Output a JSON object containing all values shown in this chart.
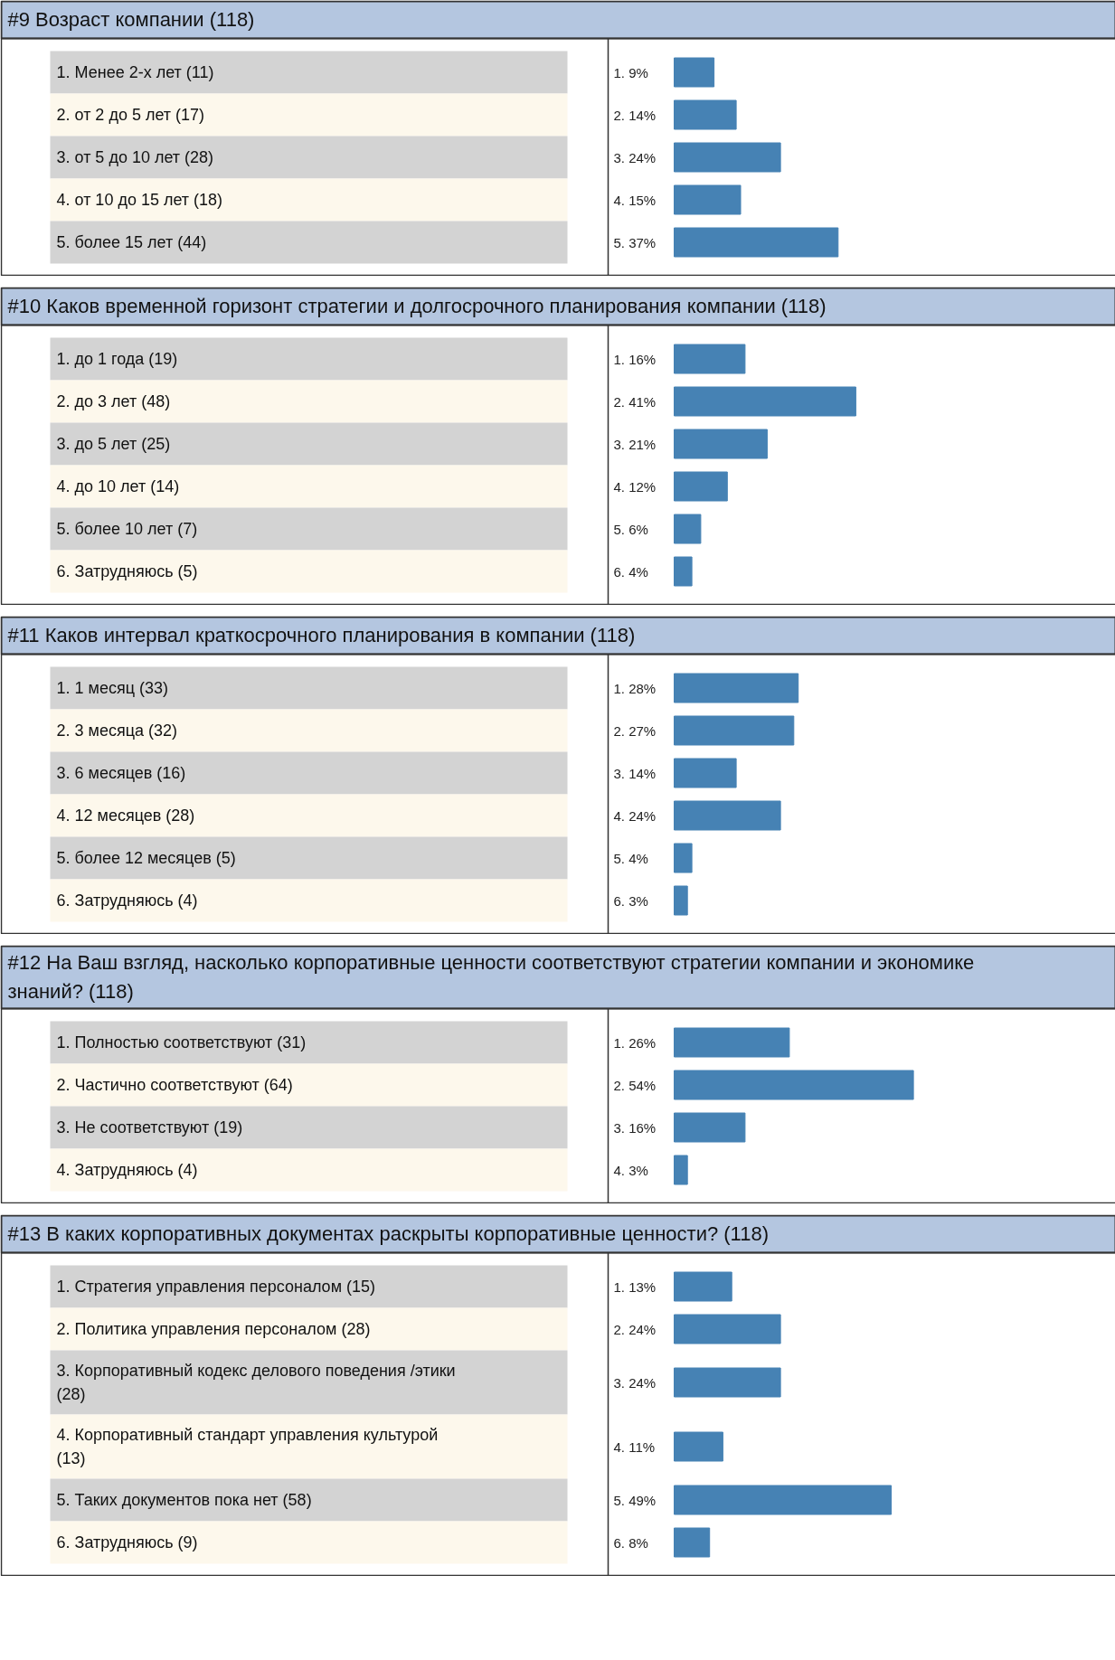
{
  "chart_data": [
    {
      "type": "bar",
      "orientation": "horizontal",
      "color": "#4682b4",
      "title": "#9 Возраст компании (118)",
      "categories": [
        "1. Менее 2-х лет (11)",
        "2. от 2 до 5 лет (17)",
        "3. от 5 до 10 лет (28)",
        "4. от 10 до 15 лет (18)",
        "5. более 15 лет (44)"
      ],
      "values": [
        9,
        14,
        24,
        15,
        37
      ],
      "value_labels": [
        "1. 9%",
        "2. 14%",
        "3. 24%",
        "4. 15%",
        "5. 37%"
      ]
    },
    {
      "type": "bar",
      "orientation": "horizontal",
      "color": "#4682b4",
      "title": "#10 Каков временной горизонт стратегии и  долгосрочного планирования компании (118)",
      "categories": [
        "1. до 1 года (19)",
        "2. до 3 лет (48)",
        "3. до 5 лет (25)",
        "4. до 10 лет (14)",
        "5. более 10 лет (7)",
        "6. Затрудняюсь (5)"
      ],
      "values": [
        16,
        41,
        21,
        12,
        6,
        4
      ],
      "value_labels": [
        "1. 16%",
        "2. 41%",
        "3. 21%",
        "4. 12%",
        "5. 6%",
        "6. 4%"
      ]
    },
    {
      "type": "bar",
      "orientation": "horizontal",
      "color": "#4682b4",
      "title": "#11 Каков интервал краткосрочного планирования в компании (118)",
      "categories": [
        "1. 1 месяц (33)",
        "2. 3 месяца (32)",
        "3. 6 месяцев (16)",
        "4. 12 месяцев (28)",
        "5. более 12 месяцев (5)",
        "6. Затрудняюсь (4)"
      ],
      "values": [
        28,
        27,
        14,
        24,
        4,
        3
      ],
      "value_labels": [
        "1. 28%",
        "2. 27%",
        "3. 14%",
        "4. 24%",
        "5. 4%",
        "6. 3%"
      ]
    },
    {
      "type": "bar",
      "orientation": "horizontal",
      "color": "#4682b4",
      "title": "#12 На Ваш взгляд, насколько корпоративные ценности соответствуют стратегии компании и экономике знаний? (118)",
      "categories": [
        "1. Полностью соответствуют (31)",
        "2. Частично соответствуют (64)",
        "3. Не соответствуют (19)",
        "4. Затрудняюсь (4)"
      ],
      "values": [
        26,
        54,
        16,
        3
      ],
      "value_labels": [
        "1. 26%",
        "2. 54%",
        "3. 16%",
        "4. 3%"
      ]
    },
    {
      "type": "bar",
      "orientation": "horizontal",
      "color": "#4682b4",
      "title": "#13 В каких корпоративных документах раскрыты корпоративные ценности? (118)",
      "categories": [
        "1. Стратегия управления персоналом (15)",
        "2. Политика управления персоналом (28)",
        "3. Корпоративный кодекс делового поведения /этики (28)",
        "4. Корпоративный стандарт управления культурой (13)",
        "5. Таких документов пока нет (58)",
        "6. Затрудняюсь (9)"
      ],
      "values": [
        13,
        24,
        24,
        11,
        49,
        8
      ],
      "value_labels": [
        "1. 13%",
        "2. 24%",
        "3. 24%",
        "4. 11%",
        "5. 49%",
        "6. 8%"
      ]
    }
  ]
}
